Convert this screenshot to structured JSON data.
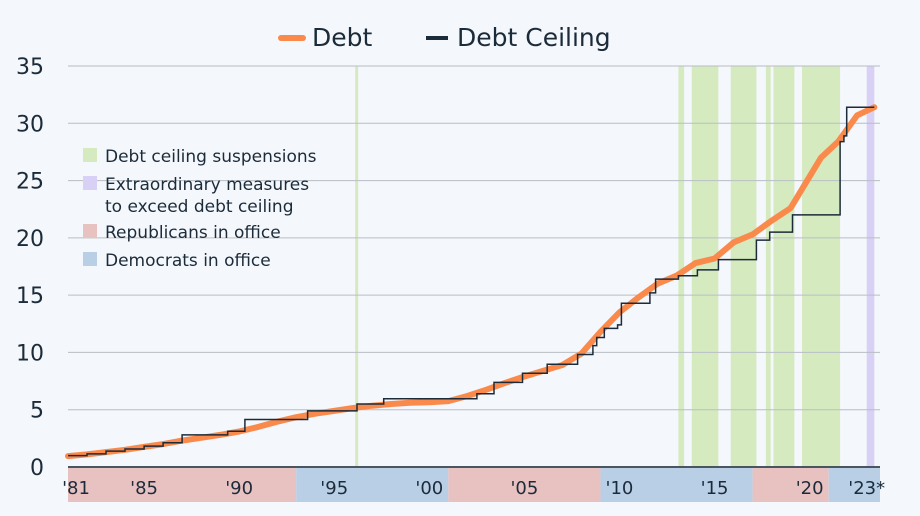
{
  "chart_data": {
    "type": "line",
    "title": "",
    "xlabel": "",
    "ylabel": "",
    "xlim": [
      1981,
      2023.7
    ],
    "ylim": [
      0,
      35
    ],
    "grid": true,
    "y_ticks": [
      0,
      5,
      10,
      15,
      20,
      25,
      30,
      35
    ],
    "x_ticks": [
      {
        "year": 1981,
        "label": "'81"
      },
      {
        "year": 1985,
        "label": "'85"
      },
      {
        "year": 1990,
        "label": "'90"
      },
      {
        "year": 1995,
        "label": "'95"
      },
      {
        "year": 2000,
        "label": "'00"
      },
      {
        "year": 2005,
        "label": "'05"
      },
      {
        "year": 2010,
        "label": "'10"
      },
      {
        "year": 2015,
        "label": "'15"
      },
      {
        "year": 2020,
        "label": "'20"
      },
      {
        "year": 2023,
        "label": "'23*"
      }
    ],
    "legend_top": [
      {
        "name": "Debt",
        "color": "#f98a4c"
      },
      {
        "name": "Debt Ceiling",
        "color": "#1c2b3a"
      }
    ],
    "legend_inner": [
      {
        "label": "Debt ceiling suspensions",
        "color": "#d6eabf"
      },
      {
        "label": "Extraordinary measures",
        "label2": "to exceed debt ceiling",
        "color": "#d8d0f5"
      },
      {
        "label": "Republicans in office",
        "color": "#e8c1c1"
      },
      {
        "label": "Democrats in office",
        "color": "#b9cfe6"
      }
    ],
    "series": [
      {
        "name": "Debt",
        "color": "#f98a4c",
        "points": [
          [
            1981,
            0.95
          ],
          [
            1982,
            1.1
          ],
          [
            1983,
            1.3
          ],
          [
            1984,
            1.5
          ],
          [
            1985,
            1.75
          ],
          [
            1986,
            2.0
          ],
          [
            1987,
            2.3
          ],
          [
            1988,
            2.55
          ],
          [
            1989,
            2.8
          ],
          [
            1990,
            3.1
          ],
          [
            1991,
            3.5
          ],
          [
            1992,
            3.95
          ],
          [
            1993,
            4.35
          ],
          [
            1994,
            4.65
          ],
          [
            1995,
            4.9
          ],
          [
            1996,
            5.15
          ],
          [
            1997,
            5.35
          ],
          [
            1998,
            5.5
          ],
          [
            1999,
            5.6
          ],
          [
            2000,
            5.65
          ],
          [
            2001,
            5.75
          ],
          [
            2002,
            6.2
          ],
          [
            2003,
            6.75
          ],
          [
            2004,
            7.35
          ],
          [
            2005,
            7.9
          ],
          [
            2006,
            8.4
          ],
          [
            2007,
            8.9
          ],
          [
            2008,
            9.9
          ],
          [
            2009,
            11.8
          ],
          [
            2010,
            13.5
          ],
          [
            2011,
            14.8
          ],
          [
            2012,
            16.0
          ],
          [
            2013,
            16.7
          ],
          [
            2014,
            17.8
          ],
          [
            2015,
            18.2
          ],
          [
            2016,
            19.6
          ],
          [
            2017,
            20.3
          ],
          [
            2018,
            21.5
          ],
          [
            2019,
            22.6
          ],
          [
            2020.6,
            27.0
          ],
          [
            2021.5,
            28.4
          ],
          [
            2022.5,
            30.7
          ],
          [
            2023.4,
            31.4
          ]
        ]
      },
      {
        "name": "Debt Ceiling",
        "color": "#1c2b3a",
        "steps": [
          [
            1981,
            0.99
          ],
          [
            1982,
            1.14
          ],
          [
            1983,
            1.39
          ],
          [
            1984,
            1.57
          ],
          [
            1985,
            1.82
          ],
          [
            1986,
            2.11
          ],
          [
            1987,
            2.8
          ],
          [
            1989.4,
            3.12
          ],
          [
            1990.3,
            4.15
          ],
          [
            1993.6,
            4.9
          ],
          [
            1996.2,
            5.5
          ],
          [
            1997.6,
            5.95
          ],
          [
            2002.5,
            6.4
          ],
          [
            2003.4,
            7.38
          ],
          [
            2004.9,
            8.18
          ],
          [
            2006.2,
            8.97
          ],
          [
            2007.8,
            9.82
          ],
          [
            2008.6,
            10.6
          ],
          [
            2008.8,
            11.3
          ],
          [
            2009.2,
            12.1
          ],
          [
            2009.9,
            12.4
          ],
          [
            2010.1,
            14.3
          ],
          [
            2011.6,
            15.2
          ],
          [
            2011.9,
            16.4
          ],
          [
            2013.1,
            16.7
          ],
          [
            2014.1,
            17.2
          ],
          [
            2015.2,
            18.1
          ],
          [
            2017.2,
            19.8
          ],
          [
            2017.9,
            20.5
          ],
          [
            2019.1,
            22.0
          ],
          [
            2021.6,
            28.4
          ],
          [
            2021.8,
            28.9
          ],
          [
            2021.95,
            31.4
          ],
          [
            2023.4,
            31.4
          ]
        ]
      }
    ],
    "suspensions": [
      [
        1996.1,
        1996.25
      ],
      [
        2013.1,
        2013.4
      ],
      [
        2013.8,
        2015.2
      ],
      [
        2015.85,
        2017.2
      ],
      [
        2017.7,
        2017.95
      ],
      [
        2018.1,
        2019.2
      ],
      [
        2019.6,
        2021.6
      ]
    ],
    "extraordinary_measures": [
      [
        2023.0,
        2023.4
      ]
    ],
    "party_periods": [
      {
        "party": "Republican",
        "from": 1981,
        "to": 1993
      },
      {
        "party": "Democrat",
        "from": 1993,
        "to": 2001
      },
      {
        "party": "Republican",
        "from": 2001,
        "to": 2009
      },
      {
        "party": "Democrat",
        "from": 2009,
        "to": 2017
      },
      {
        "party": "Republican",
        "from": 2017,
        "to": 2021
      },
      {
        "party": "Democrat",
        "from": 2021,
        "to": 2023.7
      }
    ]
  }
}
